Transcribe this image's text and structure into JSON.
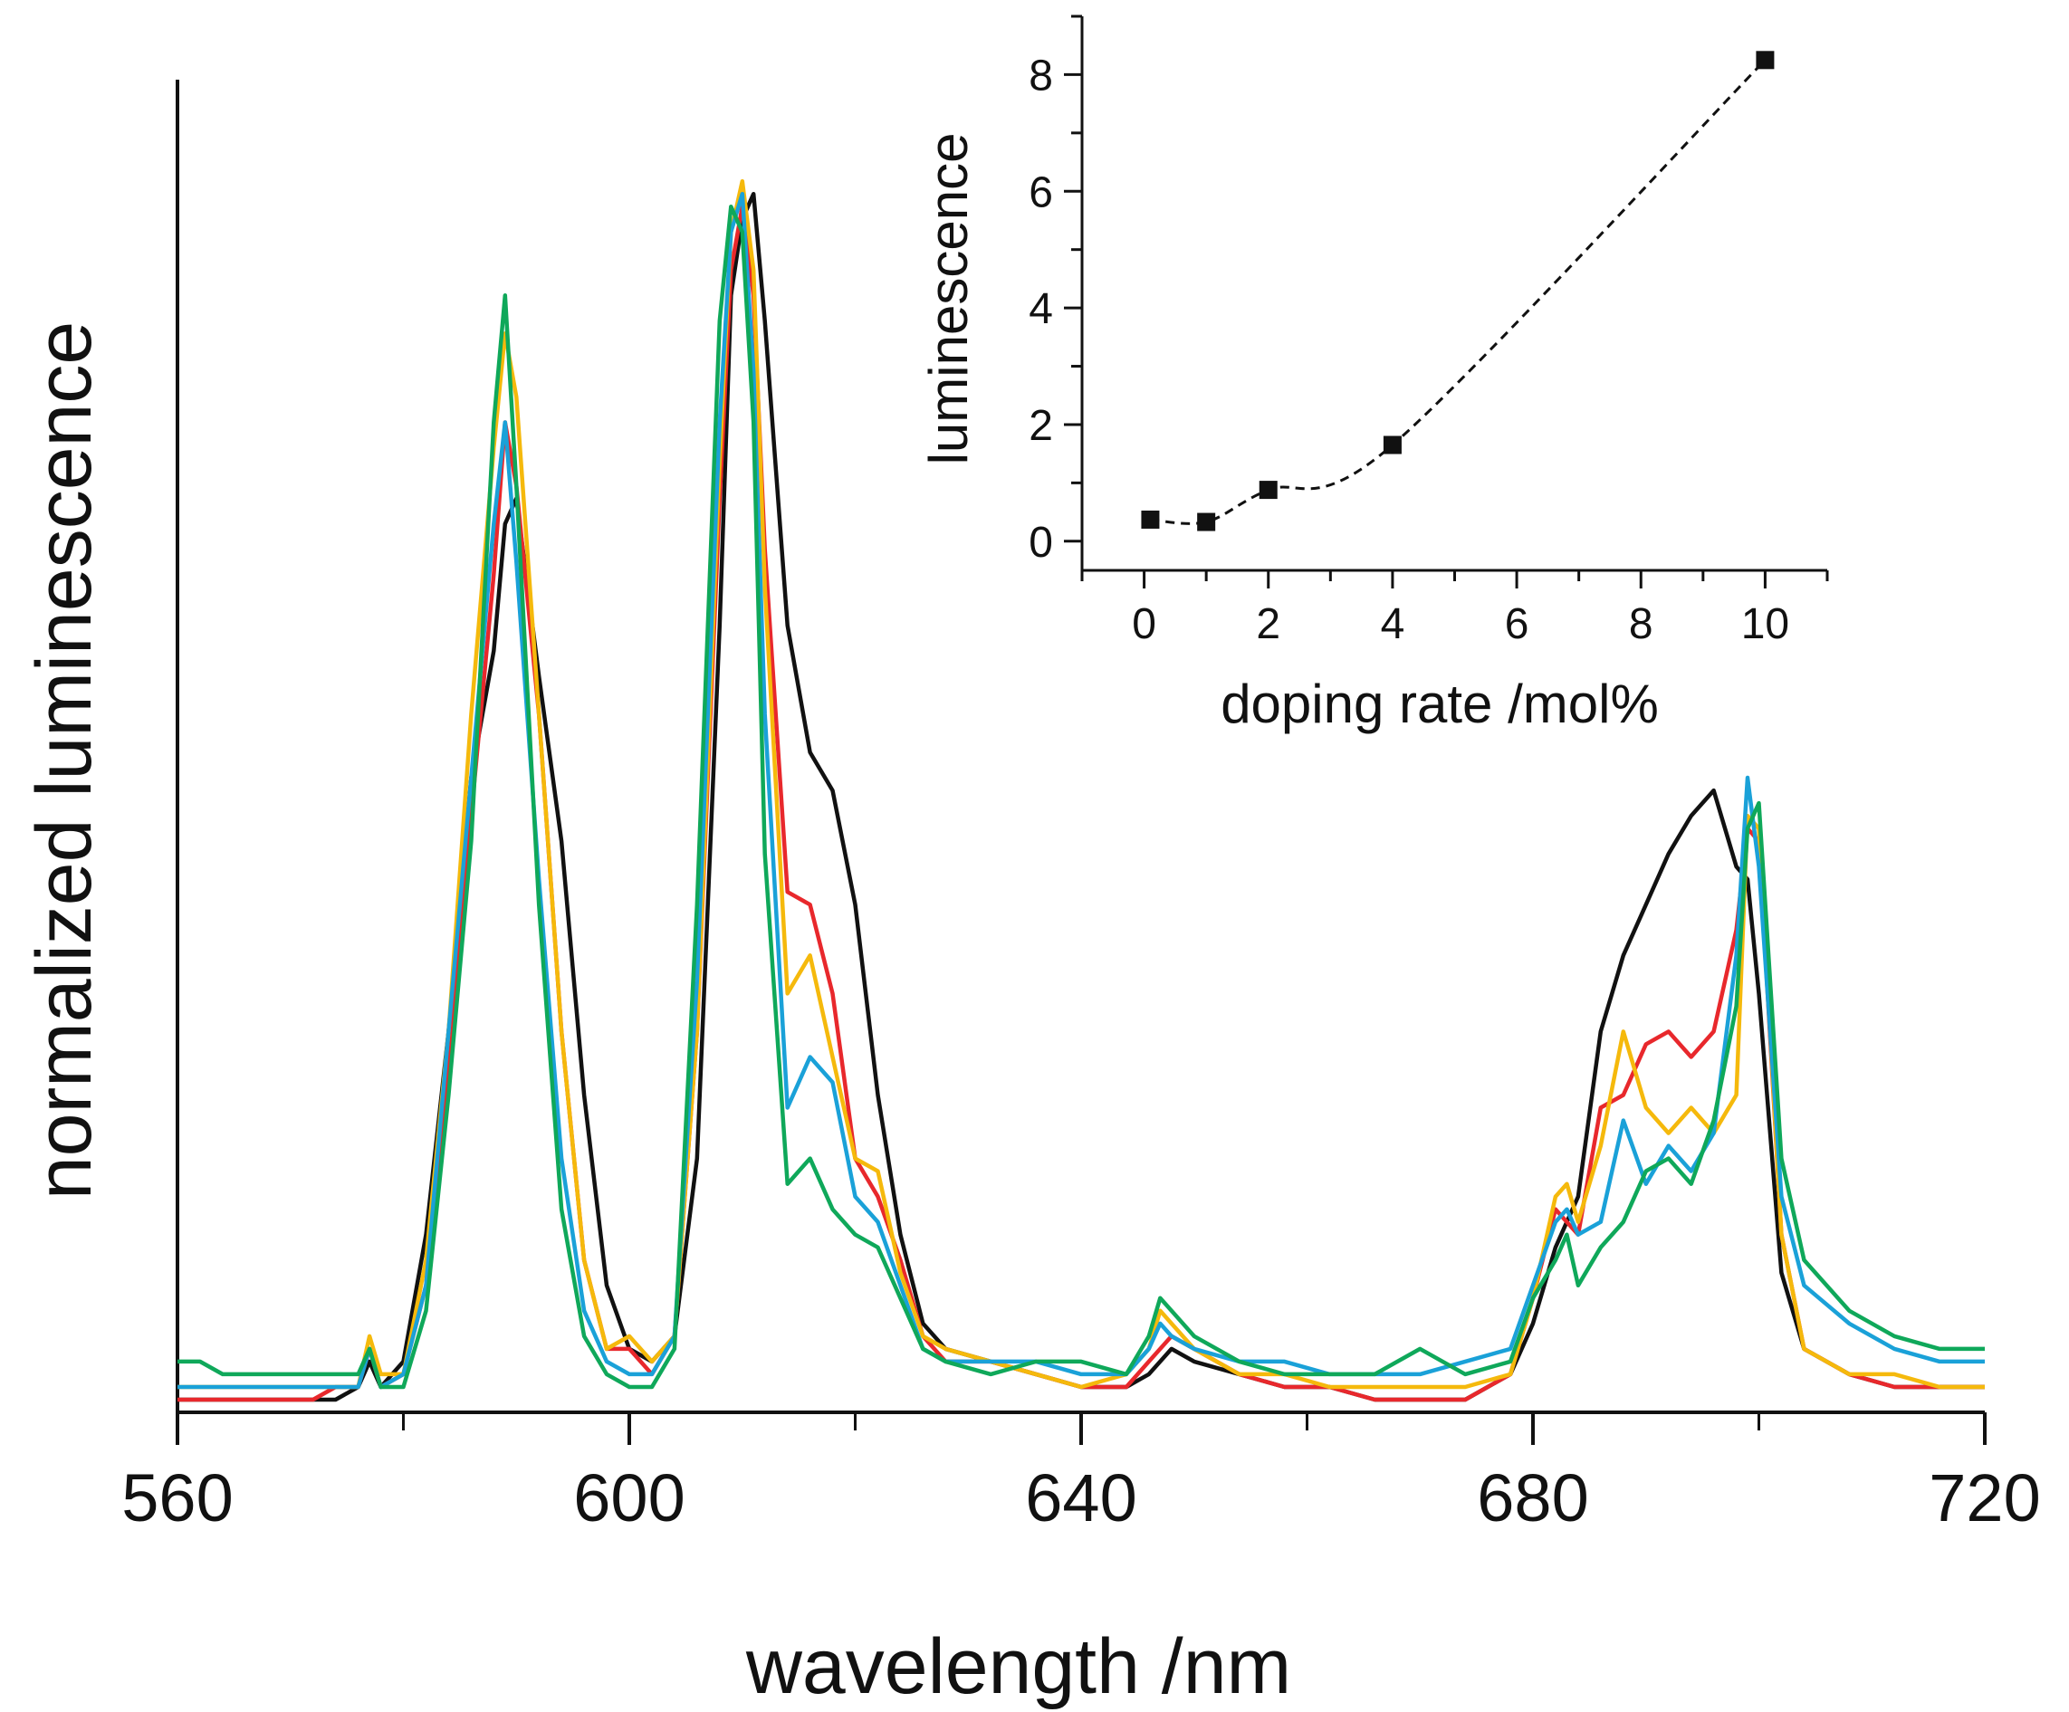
{
  "chart_data": [
    {
      "type": "line",
      "xlabel": "wavelength /nm",
      "ylabel": "normalized luminescence",
      "xlim": [
        560,
        720
      ],
      "ylim": [
        0,
        1.05
      ],
      "xticks": [
        560,
        600,
        640,
        680,
        720
      ],
      "x_minor_ticks": [
        580,
        620,
        660,
        700
      ],
      "yticks": [],
      "grid": false,
      "legend": "none",
      "x": [
        560,
        562,
        564,
        566,
        568,
        570,
        572,
        574,
        576,
        577,
        578,
        580,
        582,
        584,
        586,
        588,
        589,
        590,
        592,
        594,
        596,
        598,
        600,
        602,
        604,
        606,
        608,
        609,
        610,
        611,
        612,
        614,
        616,
        618,
        620,
        622,
        624,
        626,
        628,
        632,
        636,
        640,
        644,
        646,
        647,
        648,
        650,
        654,
        658,
        662,
        666,
        670,
        674,
        678,
        680,
        682,
        683,
        684,
        686,
        688,
        690,
        692,
        694,
        696,
        698,
        699,
        700,
        702,
        704,
        708,
        712,
        716,
        720
      ],
      "series": [
        {
          "name": "",
          "color": "#111111",
          "values": [
            0.01,
            0.01,
            0.01,
            0.01,
            0.01,
            0.01,
            0.01,
            0.01,
            0.02,
            0.04,
            0.02,
            0.04,
            0.14,
            0.3,
            0.5,
            0.6,
            0.7,
            0.72,
            0.58,
            0.45,
            0.25,
            0.1,
            0.05,
            0.04,
            0.06,
            0.2,
            0.62,
            0.88,
            0.94,
            0.96,
            0.86,
            0.62,
            0.52,
            0.49,
            0.4,
            0.25,
            0.14,
            0.07,
            0.05,
            0.04,
            0.03,
            0.02,
            0.02,
            0.03,
            0.04,
            0.05,
            0.04,
            0.03,
            0.02,
            0.02,
            0.01,
            0.01,
            0.01,
            0.03,
            0.07,
            0.13,
            0.15,
            0.17,
            0.3,
            0.36,
            0.4,
            0.44,
            0.47,
            0.49,
            0.43,
            0.42,
            0.33,
            0.11,
            0.05,
            0.03,
            0.02,
            0.02,
            0.02
          ]
        },
        {
          "name": "",
          "color": "#e8282c",
          "values": [
            0.01,
            0.01,
            0.01,
            0.01,
            0.01,
            0.01,
            0.01,
            0.02,
            0.02,
            0.05,
            0.02,
            0.03,
            0.1,
            0.28,
            0.47,
            0.66,
            0.78,
            0.73,
            0.55,
            0.3,
            0.12,
            0.05,
            0.05,
            0.03,
            0.06,
            0.3,
            0.72,
            0.9,
            0.95,
            0.88,
            0.68,
            0.41,
            0.4,
            0.33,
            0.2,
            0.17,
            0.12,
            0.06,
            0.04,
            0.04,
            0.03,
            0.02,
            0.02,
            0.04,
            0.05,
            0.06,
            0.05,
            0.03,
            0.02,
            0.02,
            0.01,
            0.01,
            0.01,
            0.03,
            0.09,
            0.16,
            0.15,
            0.14,
            0.24,
            0.25,
            0.29,
            0.3,
            0.28,
            0.3,
            0.38,
            0.46,
            0.45,
            0.14,
            0.05,
            0.03,
            0.02,
            0.02,
            0.02
          ]
        },
        {
          "name": "",
          "color": "#f5b90c",
          "values": [
            0.02,
            0.02,
            0.02,
            0.02,
            0.02,
            0.02,
            0.02,
            0.02,
            0.02,
            0.06,
            0.03,
            0.03,
            0.12,
            0.3,
            0.55,
            0.76,
            0.85,
            0.8,
            0.55,
            0.3,
            0.12,
            0.05,
            0.06,
            0.04,
            0.06,
            0.3,
            0.75,
            0.93,
            0.97,
            0.9,
            0.65,
            0.33,
            0.36,
            0.28,
            0.2,
            0.19,
            0.11,
            0.06,
            0.05,
            0.04,
            0.03,
            0.02,
            0.03,
            0.05,
            0.08,
            0.07,
            0.05,
            0.03,
            0.03,
            0.02,
            0.02,
            0.02,
            0.02,
            0.03,
            0.09,
            0.17,
            0.18,
            0.15,
            0.21,
            0.3,
            0.24,
            0.22,
            0.24,
            0.22,
            0.25,
            0.47,
            0.46,
            0.14,
            0.05,
            0.03,
            0.03,
            0.02,
            0.02
          ]
        },
        {
          "name": "",
          "color": "#1aa1d8",
          "values": [
            0.02,
            0.02,
            0.02,
            0.02,
            0.02,
            0.02,
            0.02,
            0.02,
            0.02,
            0.05,
            0.02,
            0.03,
            0.1,
            0.3,
            0.5,
            0.7,
            0.78,
            0.67,
            0.42,
            0.2,
            0.08,
            0.04,
            0.03,
            0.03,
            0.06,
            0.34,
            0.78,
            0.93,
            0.96,
            0.82,
            0.55,
            0.24,
            0.28,
            0.26,
            0.17,
            0.15,
            0.1,
            0.05,
            0.04,
            0.04,
            0.04,
            0.03,
            0.03,
            0.05,
            0.07,
            0.06,
            0.05,
            0.04,
            0.04,
            0.03,
            0.03,
            0.03,
            0.04,
            0.05,
            0.1,
            0.15,
            0.16,
            0.14,
            0.15,
            0.23,
            0.18,
            0.21,
            0.19,
            0.22,
            0.36,
            0.5,
            0.43,
            0.17,
            0.1,
            0.07,
            0.05,
            0.04,
            0.04
          ]
        },
        {
          "name": "",
          "color": "#0fa85a",
          "values": [
            0.04,
            0.04,
            0.03,
            0.03,
            0.03,
            0.03,
            0.03,
            0.03,
            0.03,
            0.05,
            0.02,
            0.02,
            0.08,
            0.25,
            0.45,
            0.78,
            0.88,
            0.73,
            0.4,
            0.16,
            0.06,
            0.03,
            0.02,
            0.02,
            0.05,
            0.4,
            0.86,
            0.95,
            0.93,
            0.78,
            0.44,
            0.18,
            0.2,
            0.16,
            0.14,
            0.13,
            0.09,
            0.05,
            0.04,
            0.03,
            0.04,
            0.04,
            0.03,
            0.06,
            0.09,
            0.08,
            0.06,
            0.04,
            0.03,
            0.03,
            0.03,
            0.05,
            0.03,
            0.04,
            0.09,
            0.12,
            0.14,
            0.1,
            0.13,
            0.15,
            0.19,
            0.2,
            0.18,
            0.23,
            0.32,
            0.46,
            0.48,
            0.2,
            0.12,
            0.08,
            0.06,
            0.05,
            0.05
          ]
        }
      ]
    },
    {
      "type": "scatter",
      "xlabel": "doping rate /mol%",
      "ylabel": "luminescence",
      "xlim": [
        -1,
        11
      ],
      "ylim": [
        -0.5,
        9
      ],
      "xticks": [
        0,
        2,
        4,
        6,
        8,
        10
      ],
      "yticks": [
        0,
        2,
        4,
        6,
        8
      ],
      "grid": false,
      "legend": "none",
      "x": [
        0.1,
        1,
        2,
        4,
        10
      ],
      "y": [
        0.37,
        0.33,
        0.88,
        1.65,
        8.25
      ],
      "marker": "square",
      "fit": {
        "style": "dashed",
        "color": "#111111"
      }
    }
  ]
}
